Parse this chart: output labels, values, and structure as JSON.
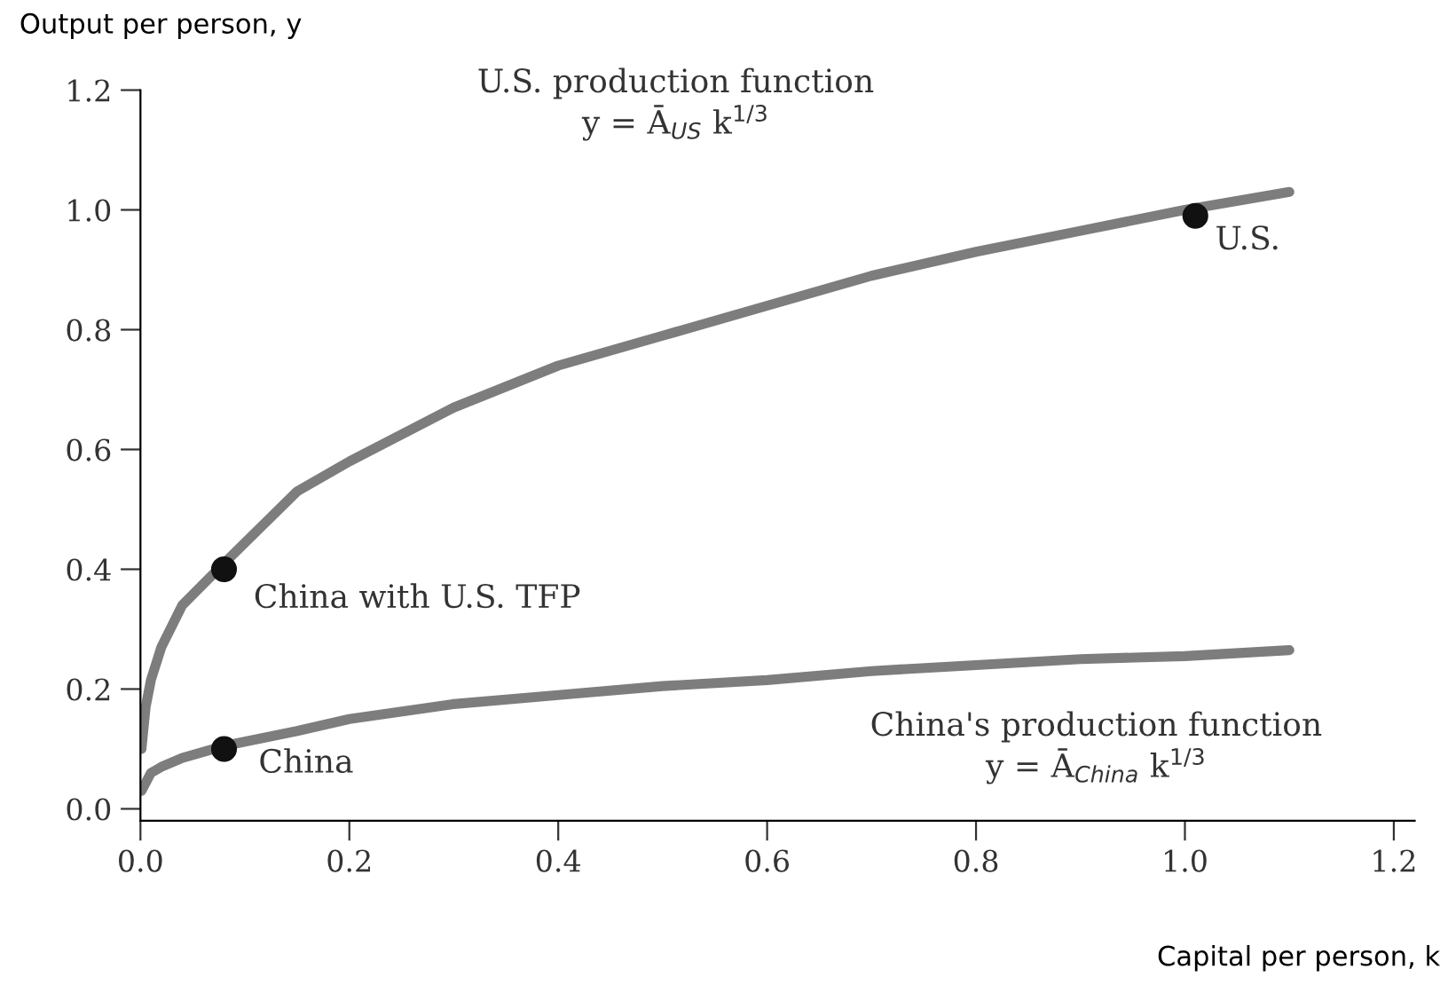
{
  "chart_data": {
    "type": "line",
    "xlabel": "Capital per person, k",
    "ylabel": "Output per person, y",
    "xlim": [
      0,
      1.22
    ],
    "ylim": [
      -0.02,
      1.2
    ],
    "xticks": [
      {
        "value": 0,
        "label": "0.0"
      },
      0.2,
      0.4,
      0.6,
      0.8,
      {
        "value": 1,
        "label": "1.0"
      },
      1.2
    ],
    "yticks": [
      {
        "value": 0,
        "label": "0.0"
      },
      0.2,
      0.4,
      0.6,
      0.8,
      {
        "value": 1,
        "label": "1.0"
      },
      1.2
    ],
    "grid": false,
    "legend": false,
    "series": [
      {
        "color": "#7d7d7d",
        "x": [
          0.001,
          0.005,
          0.01,
          0.02,
          0.04,
          0.08,
          0.15,
          0.2,
          0.3,
          0.4,
          0.5,
          0.6,
          0.7,
          0.8,
          0.9,
          1.0,
          1.1
        ],
        "values": [
          0.1,
          0.17,
          0.215,
          0.27,
          0.34,
          0.41,
          0.53,
          0.58,
          0.67,
          0.74,
          0.79,
          0.84,
          0.89,
          0.93,
          0.965,
          1.0,
          1.03
        ]
      },
      {
        "color": "#7d7d7d",
        "x": [
          0.001,
          0.01,
          0.02,
          0.04,
          0.08,
          0.15,
          0.2,
          0.3,
          0.4,
          0.5,
          0.6,
          0.7,
          0.8,
          0.9,
          1.0,
          1.1
        ],
        "values": [
          0.03,
          0.06,
          0.07,
          0.085,
          0.105,
          0.13,
          0.15,
          0.175,
          0.19,
          0.205,
          0.215,
          0.23,
          0.24,
          0.25,
          0.255,
          0.265
        ]
      },
      {
        "type": "scatter",
        "color": "#111111",
        "marker": "circle",
        "x": [
          0.08,
          1.01,
          0.08
        ],
        "values": [
          0.4,
          0.99,
          0.1
        ]
      }
    ],
    "annotations": [
      "China with U.S. TFP",
      "U.S.",
      "China",
      "U.S. production function\ny = Ā$_{US}$ k$^{1/3}$",
      "China's production function\ny = Ā$_{China}$ k$^{1/3}$"
    ]
  }
}
